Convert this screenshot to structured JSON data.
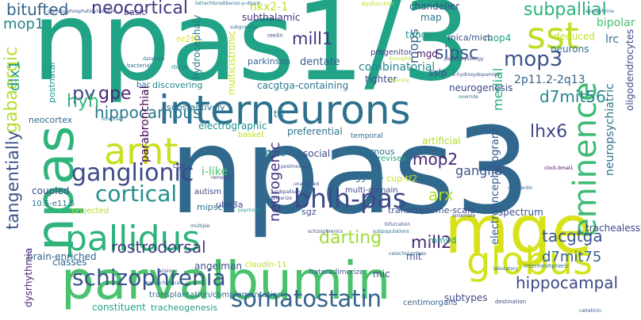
{
  "words": [
    {
      "text": "npas1/3",
      "color": "#20a386"
    },
    {
      "text": "npas3",
      "color": "#31688e"
    },
    {
      "text": "parvalbumin",
      "color": "#4ac16d"
    },
    {
      "text": "interneurons",
      "color": "#2d708e"
    },
    {
      "text": "mge",
      "color": "#d8e219"
    },
    {
      "text": "globus",
      "color": "#d2e21b"
    },
    {
      "text": "pallidus",
      "color": "#2eb37c"
    },
    {
      "text": "somatostatin",
      "color": "#32648e"
    },
    {
      "text": "npas",
      "color": "#2fb47c"
    },
    {
      "text": "arnt",
      "color": "#c8e020"
    },
    {
      "text": "sst",
      "color": "#bddf26"
    },
    {
      "text": "eminence",
      "color": "#3dbc74"
    },
    {
      "text": "bhlh-pas",
      "color": "#3e4a89"
    },
    {
      "text": "schizophrenia",
      "color": "#3b528b"
    },
    {
      "text": "ganglionic",
      "color": "#3e4989"
    },
    {
      "text": "cortical",
      "color": "#21918c"
    },
    {
      "text": "subpallial",
      "color": "#2db27d"
    },
    {
      "text": "mop3",
      "color": "#3b528b"
    },
    {
      "text": "lhx6",
      "color": "#3f4788"
    },
    {
      "text": "d7mit56",
      "color": "#25848e"
    },
    {
      "text": "neocortical",
      "color": "#453882"
    },
    {
      "text": "gabaergic",
      "color": "#b5de2b"
    },
    {
      "text": "tangentially",
      "color": "#3a548c"
    },
    {
      "text": "rostrodorsal",
      "color": "#433d84"
    },
    {
      "text": "darting",
      "color": "#a0da39"
    },
    {
      "text": "mill2",
      "color": "#482677"
    },
    {
      "text": "tacgtga",
      "color": "#3b528b"
    },
    {
      "text": "d7mit75",
      "color": "#33638d"
    },
    {
      "text": "hippocampal",
      "color": "#3e4989"
    },
    {
      "text": "hippocampus",
      "color": "#2a788e"
    },
    {
      "text": "mop2",
      "color": "#482475"
    },
    {
      "text": "sipsc",
      "color": "#3b528b"
    },
    {
      "text": "mill1",
      "color": "#46337e"
    },
    {
      "text": "neurogenic",
      "color": "#46327e"
    },
    {
      "text": "arx",
      "color": "#b5de2b"
    },
    {
      "text": "pv",
      "color": "#3e4989"
    },
    {
      "text": "gpe",
      "color": "#482576"
    },
    {
      "text": "hyh",
      "color": "#32b67a"
    },
    {
      "text": "bitufted",
      "color": "#32648e"
    },
    {
      "text": "mop1",
      "color": "#25858e"
    },
    {
      "text": "dlx1",
      "color": "#1e9b8a"
    },
    {
      "text": "mops",
      "color": "#34608d"
    },
    {
      "text": "medial",
      "color": "#2ab07f"
    },
    {
      "text": "2p11.2-2q13",
      "color": "#33638d"
    },
    {
      "text": "lrc",
      "color": "#2d718e"
    },
    {
      "text": "bipolar",
      "color": "#44bf70"
    },
    {
      "text": "ganglia",
      "color": "#3b528b"
    },
    {
      "text": "combinatorial",
      "color": "#25858e"
    },
    {
      "text": "parabronchial",
      "color": "#440154"
    },
    {
      "text": "neuropsychiatric",
      "color": "#2c728e"
    },
    {
      "text": "electroencephalogram",
      "color": "#365c8d"
    },
    {
      "text": "nkx2-1",
      "color": "#bddf26"
    },
    {
      "text": "subthalamic",
      "color": "#46307e"
    },
    {
      "text": "mm9d",
      "color": "#1f988b"
    },
    {
      "text": "mit",
      "color": "#3a548c"
    },
    {
      "text": "mic",
      "color": "#3e4a89"
    },
    {
      "text": "classes",
      "color": "#31688e"
    },
    {
      "text": "brain-enriched",
      "color": "#32658e"
    },
    {
      "text": "dysrhythmia",
      "color": "#481f70"
    },
    {
      "text": "postnatal",
      "color": "#1f948c"
    },
    {
      "text": "coupled",
      "color": "#3f4889"
    },
    {
      "text": "10.5-e11.5",
      "color": "#2d708e"
    },
    {
      "text": "autism",
      "color": "#3e4989"
    },
    {
      "text": "spectrum",
      "color": "#3b528b"
    },
    {
      "text": "trachealess",
      "color": "#3e4a89"
    },
    {
      "text": "subtypes",
      "color": "#3e4989"
    },
    {
      "text": "constituent",
      "color": "#20a386"
    },
    {
      "text": "tracheogenesis",
      "color": "#1f9a8a"
    },
    {
      "text": "centimorgans",
      "color": "#355f8d"
    },
    {
      "text": "transplantation/complementation",
      "color": "#2e6e8e"
    },
    {
      "text": "angelman",
      "color": "#3b528b"
    },
    {
      "text": "claudin-11",
      "color": "#b8de29"
    },
    {
      "text": "heteradimerize",
      "color": "#375b8d"
    },
    {
      "text": "neurogenesis",
      "color": "#3e4989"
    },
    {
      "text": "transcriptome-scale",
      "color": "#3b528b"
    },
    {
      "text": "multi-domain",
      "color": "#404588"
    },
    {
      "text": "gyrus",
      "color": "#2c738e"
    },
    {
      "text": "zone",
      "color": "#2a788e"
    },
    {
      "text": "social",
      "color": "#3e4989"
    },
    {
      "text": "revises",
      "color": "#25ab82"
    },
    {
      "text": "autonomous",
      "color": "#2b758e"
    },
    {
      "text": "preferential",
      "color": "#2c738e"
    },
    {
      "text": "electrographic",
      "color": "#21918c"
    },
    {
      "text": "artificial",
      "color": "#b2dd2d"
    },
    {
      "text": "temporal",
      "color": "#31688e"
    },
    {
      "text": "basket",
      "color": "#c8e020"
    },
    {
      "text": "substantively",
      "color": "#2c718e"
    },
    {
      "text": "discovering",
      "color": "#24878e"
    },
    {
      "text": "cacgtga-containing",
      "color": "#2b758e"
    },
    {
      "text": "dentate",
      "color": "#355f8d"
    },
    {
      "text": "tighter",
      "color": "#3e4989"
    },
    {
      "text": "parkinson",
      "color": "#33638d"
    },
    {
      "text": "progenitor",
      "color": "#414487"
    },
    {
      "text": "mgd",
      "color": "#471063"
    },
    {
      "text": "sslp",
      "color": "#3b528b"
    },
    {
      "text": "neurons",
      "color": "#2d708e"
    },
    {
      "text": "oligodendrocytes",
      "color": "#3e4989"
    },
    {
      "text": "deduced",
      "color": "#c2df23"
    },
    {
      "text": "mop4",
      "color": "#22a785"
    },
    {
      "text": "tango",
      "color": "#21918c"
    },
    {
      "text": "mica/micb",
      "color": "#3b528b"
    },
    {
      "text": "chandelier",
      "color": "#3e4989"
    },
    {
      "text": "map",
      "color": "#2c718e"
    },
    {
      "text": "multicistronic",
      "color": "#c5e021"
    },
    {
      "text": "hydrocephaly",
      "color": "#2b758e"
    },
    {
      "text": "i-like",
      "color": "#4ac16d"
    },
    {
      "text": "cge",
      "color": "#3e4989"
    },
    {
      "text": "basic",
      "color": "#443983"
    },
    {
      "text": "neocortex",
      "color": "#31688e"
    },
    {
      "text": "ube3a",
      "color": "#3e4989"
    },
    {
      "text": "mipsc",
      "color": "#2d708e"
    },
    {
      "text": "trl",
      "color": "#2c738e"
    },
    {
      "text": "cup-tf2",
      "color": "#c2df23"
    },
    {
      "text": "sgz",
      "color": "#3b528b"
    },
    {
      "text": "projected",
      "color": "#b5de2b"
    },
    {
      "text": "acidergic",
      "color": "#22a884"
    },
    {
      "text": "bac",
      "color": "#31688e"
    },
    {
      "text": "nr2f1",
      "color": "#d8e219"
    },
    {
      "text": "rbx-jk",
      "color": "#287d8e"
    },
    {
      "text": "reelin",
      "color": "#3b528b"
    },
    {
      "text": "drosophila",
      "color": "#b5de2b"
    },
    {
      "text": "override",
      "color": "#2c728e"
    },
    {
      "text": "basal",
      "color": "#3e4989"
    },
    {
      "text": "postmortem",
      "color": "#3b528b"
    },
    {
      "text": "psychosis",
      "color": "#1f968b"
    },
    {
      "text": "unaffected",
      "color": "#3a548c"
    },
    {
      "text": "myocardin",
      "color": "#31688e"
    },
    {
      "text": "subpallium",
      "color": "#3e4989"
    },
    {
      "text": "forebrain",
      "color": "#2c738e"
    },
    {
      "text": "database",
      "color": "#2d708e"
    },
    {
      "text": "neurochemical",
      "color": "#31688e"
    },
    {
      "text": "arising",
      "color": "#3e4989"
    },
    {
      "text": "clock-bmal1",
      "color": "#440154"
    },
    {
      "text": "schizophrenics",
      "color": "#3b528b"
    },
    {
      "text": "multiple",
      "color": "#31688e"
    },
    {
      "text": "intermeshpheric",
      "color": "#2d708e"
    },
    {
      "text": "destination",
      "color": "#3e4989"
    },
    {
      "text": "calretinin",
      "color": "#3b528b"
    },
    {
      "text": "diversity",
      "color": "#b5de2b"
    },
    {
      "text": "pathophysiology",
      "color": "#3e4989"
    },
    {
      "text": "laboratory",
      "color": "#31688e"
    },
    {
      "text": "epinephrine",
      "color": "#31688e"
    },
    {
      "text": "dysfunction",
      "color": "#b5de2b"
    },
    {
      "text": "bacterial",
      "color": "#2d708e"
    },
    {
      "text": "6-hydroxydopamine",
      "color": "#3b528b"
    },
    {
      "text": "subgranular",
      "color": "#2c738e"
    },
    {
      "text": "remotely",
      "color": "#3e4989"
    },
    {
      "text": "dimerize",
      "color": "#3e4989"
    },
    {
      "text": "subpopulations",
      "color": "#2c718e"
    },
    {
      "text": "bifurcation",
      "color": "#3b528b"
    },
    {
      "text": "catecholamines",
      "color": "#31688e"
    },
    {
      "text": "ensemble",
      "color": "#3e4989"
    },
    {
      "text": "tetrachlorodibenzo-p-dioxin",
      "color": "#2c738e"
    },
    {
      "text": "glycosylphosphatidylinositol",
      "color": "#3b528b"
    }
  ]
}
